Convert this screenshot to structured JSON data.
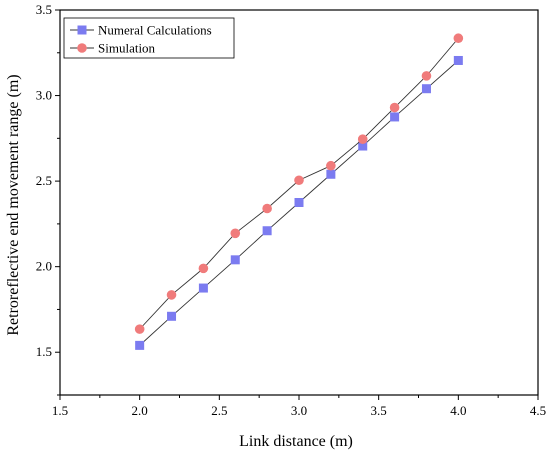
{
  "chart_data": {
    "type": "line",
    "title": "",
    "xlabel": "Link distance (m)",
    "ylabel": "Retroreflective end movement range (m)",
    "xlim": [
      1.5,
      4.5
    ],
    "ylim": [
      1.25,
      3.5
    ],
    "xticks": [
      "1.5",
      "2.0",
      "2.5",
      "3.0",
      "3.5",
      "4.0",
      "4.5"
    ],
    "yticks": [
      "1.5",
      "2.0",
      "2.5",
      "3.0",
      "3.5"
    ],
    "grid": false,
    "legend_position": "top-left",
    "x": [
      2.0,
      2.2,
      2.4,
      2.6,
      2.8,
      3.0,
      3.2,
      3.4,
      3.6,
      3.8,
      4.0
    ],
    "series": [
      {
        "name": "Numeral Calculations",
        "marker": "square",
        "color": "#7b7bf0",
        "values": [
          1.54,
          1.71,
          1.875,
          2.04,
          2.21,
          2.375,
          2.54,
          2.705,
          2.875,
          3.04,
          3.205
        ]
      },
      {
        "name": "Simulation",
        "marker": "circle",
        "color": "#f07b7b",
        "values": [
          1.635,
          1.835,
          1.99,
          2.195,
          2.34,
          2.505,
          2.59,
          2.745,
          2.93,
          3.115,
          3.335
        ]
      }
    ],
    "line_color": "#333333",
    "axis_color": "#000000"
  }
}
